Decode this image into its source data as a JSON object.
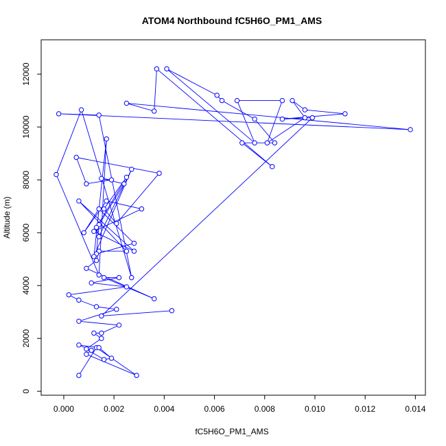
{
  "chart_data": {
    "type": "line",
    "title": "ATOM4 Northbound fC5H6O_PM1_AMS",
    "xlabel": "fC5H6O_PM1_AMS",
    "ylabel": "Altitude (m)",
    "xlim": [
      -0.0009,
      0.0144
    ],
    "ylim": [
      -150,
      13300
    ],
    "xticks": [
      "0.000",
      "0.002",
      "0.004",
      "0.006",
      "0.008",
      "0.010",
      "0.012",
      "0.014"
    ],
    "yticks": [
      "0",
      "2000",
      "4000",
      "6000",
      "8000",
      "10000",
      "12000"
    ],
    "grid": false,
    "series": [
      {
        "color": "#0000ff",
        "marker": "open-circle",
        "points": [
          [
            0.0006,
            600
          ],
          [
            0.0013,
            1650
          ],
          [
            0.0029,
            600
          ],
          [
            0.0009,
            1400
          ],
          [
            0.0011,
            1550
          ],
          [
            0.0006,
            1750
          ],
          [
            0.0014,
            1650
          ],
          [
            0.0019,
            1250
          ],
          [
            0.0016,
            1200
          ],
          [
            0.0009,
            1600
          ],
          [
            0.0015,
            2000
          ],
          [
            0.0012,
            2200
          ],
          [
            0.0015,
            2200
          ],
          [
            0.0022,
            2500
          ],
          [
            0.0006,
            2650
          ],
          [
            0.0021,
            3100
          ],
          [
            0.0013,
            3200
          ],
          [
            0.0006,
            3450
          ],
          [
            0.0002,
            3650
          ],
          [
            0.0025,
            3950
          ],
          [
            0.0011,
            4100
          ],
          [
            0.0022,
            4300
          ],
          [
            0.0016,
            4300
          ],
          [
            0.0036,
            3500
          ],
          [
            0.0009,
            4650
          ],
          [
            0.0013,
            4950
          ],
          [
            0.0014,
            5300
          ],
          [
            0.0025,
            5300
          ],
          [
            0.0006,
            7200
          ],
          [
            0.0028,
            5300
          ],
          [
            0.0012,
            6050
          ],
          [
            0.0031,
            6900
          ],
          [
            0.0017,
            7200
          ],
          [
            0.0008,
            6000
          ],
          [
            0.0014,
            6900
          ],
          [
            0.0028,
            5600
          ],
          [
            0.0013,
            5200
          ],
          [
            0.0014,
            6300
          ],
          [
            0.0024,
            7850
          ],
          [
            0.0015,
            8050
          ],
          [
            0.0019,
            8000
          ],
          [
            0.0009,
            7850
          ],
          [
            0.0005,
            8850
          ],
          [
            0.0038,
            8250
          ],
          [
            0.0021,
            6350
          ],
          [
            0.0016,
            6900
          ],
          [
            0.0025,
            8100
          ],
          [
            0.0013,
            6200
          ],
          [
            0.0014,
            5850
          ],
          [
            0.0027,
            8400
          ],
          [
            0.0012,
            5100
          ],
          [
            0.0017,
            9550
          ],
          [
            0.0014,
            4400
          ],
          [
            -0.0003,
            8200
          ],
          [
            0.0007,
            10650
          ],
          [
            0.0027,
            4300
          ],
          [
            0.0014,
            10450
          ],
          [
            -0.0002,
            10500
          ],
          [
            0.0138,
            9900
          ],
          [
            0.0025,
            10900
          ],
          [
            0.0036,
            10600
          ],
          [
            0.0037,
            12200
          ],
          [
            0.0083,
            8500
          ],
          [
            0.0071,
            9400
          ],
          [
            0.0084,
            9400
          ],
          [
            0.0076,
            10300
          ],
          [
            0.0063,
            11000
          ],
          [
            0.0061,
            11200
          ],
          [
            0.0041,
            12200
          ],
          [
            0.0076,
            9400
          ],
          [
            0.0069,
            11000
          ],
          [
            0.0087,
            11000
          ],
          [
            0.0081,
            9400
          ],
          [
            0.0096,
            10350
          ],
          [
            0.0091,
            11000
          ],
          [
            0.0096,
            10650
          ],
          [
            0.0112,
            10500
          ],
          [
            0.0087,
            10300
          ],
          [
            0.0099,
            10350
          ],
          [
            0.0015,
            2850
          ],
          [
            0.0043,
            3050
          ]
        ]
      }
    ]
  }
}
